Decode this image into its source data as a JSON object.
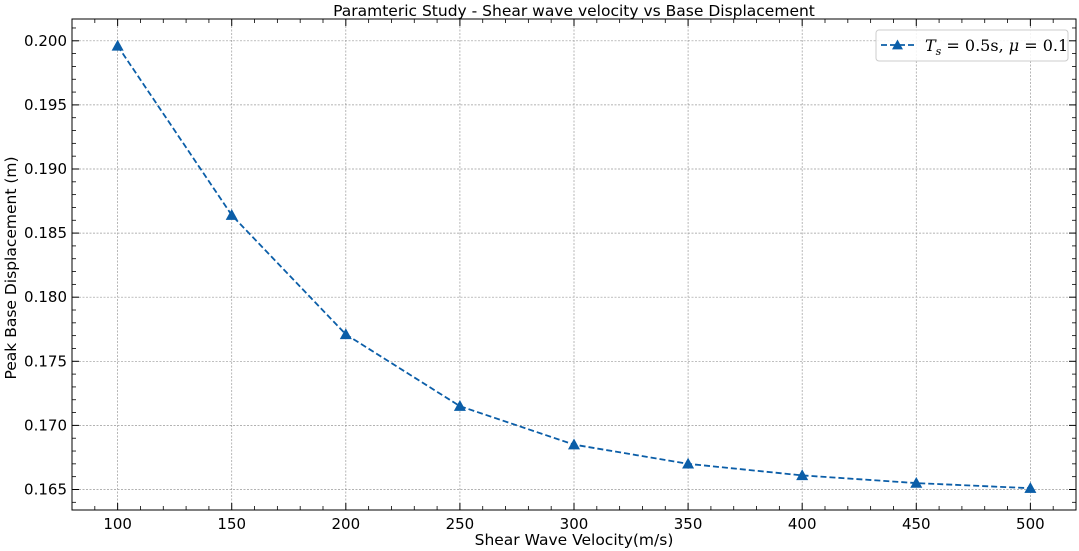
{
  "chart_data": {
    "type": "line",
    "title": "Paramteric Study - Shear wave velocity vs Base Displacement",
    "xlabel": "Shear Wave Velocity(m/s)",
    "ylabel": "Peak Base Displacement (m)",
    "xlim": [
      80,
      520
    ],
    "ylim": [
      0.1634,
      0.2017
    ],
    "xticks": [
      100,
      150,
      200,
      250,
      300,
      350,
      400,
      450,
      500
    ],
    "xtick_labels": [
      "100",
      "150",
      "200",
      "250",
      "300",
      "350",
      "400",
      "450",
      "500"
    ],
    "yticks": [
      0.165,
      0.17,
      0.175,
      0.18,
      0.185,
      0.19,
      0.195,
      0.2
    ],
    "ytick_labels": [
      "0.165",
      "0.170",
      "0.175",
      "0.180",
      "0.185",
      "0.190",
      "0.195",
      "0.200"
    ],
    "grid": true,
    "legend_position": "top-right",
    "series": [
      {
        "name": "T_s = 0.5s, μ = 0.1",
        "color": "#0b5ea8",
        "line_style": "dashed",
        "marker": "triangle-up",
        "x": [
          100,
          150,
          200,
          250,
          300,
          350,
          400,
          450,
          500
        ],
        "y": [
          0.1996,
          0.1864,
          0.1771,
          0.1715,
          0.1685,
          0.167,
          0.1661,
          0.1655,
          0.1651
        ]
      }
    ],
    "legend": {
      "symbol": "T",
      "subscript": "s",
      "value_text": " = 0.5s, ",
      "mu_symbol": "μ",
      "mu_value_text": " = 0.1"
    }
  }
}
